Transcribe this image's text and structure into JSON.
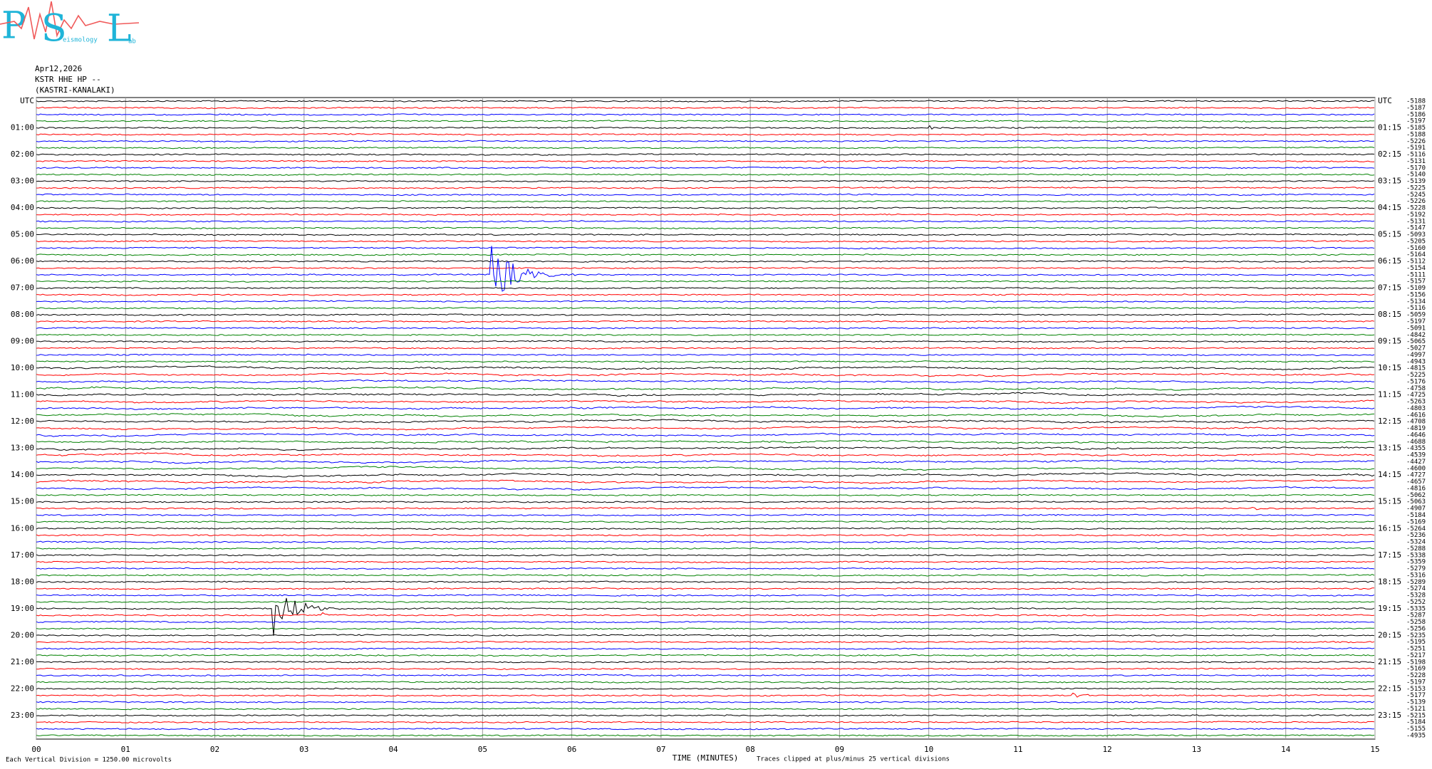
{
  "logo": {
    "letters": [
      "P",
      "S",
      "L"
    ],
    "small": [
      "eismology",
      "ab"
    ]
  },
  "header": {
    "date": "Apr12,2026",
    "station": "KSTR HHE HP --",
    "location": "(KASTRI-KANALAKI)"
  },
  "left_labels": [
    "UTC",
    "01:00",
    "02:00",
    "03:00",
    "04:00",
    "05:00",
    "06:00",
    "07:00",
    "08:00",
    "09:00",
    "10:00",
    "11:00",
    "12:00",
    "13:00",
    "14:00",
    "15:00",
    "16:00",
    "17:00",
    "18:00",
    "19:00",
    "20:00",
    "21:00",
    "22:00",
    "23:00"
  ],
  "right_labels": [
    "UTC",
    "01:15",
    "02:15",
    "03:15",
    "04:15",
    "05:15",
    "06:15",
    "07:15",
    "08:15",
    "09:15",
    "10:15",
    "11:15",
    "12:15",
    "13:15",
    "14:15",
    "15:15",
    "16:15",
    "17:15",
    "18:15",
    "19:15",
    "20:15",
    "21:15",
    "22:15",
    "23:15"
  ],
  "offsets": [
    -5188,
    -5187,
    -5186,
    -5197,
    -5185,
    -5188,
    -5226,
    -5191,
    -5116,
    -5131,
    -5170,
    -5140,
    -5139,
    -5225,
    -5245,
    -5226,
    -5228,
    -5192,
    -5131,
    -5147,
    -5093,
    -5205,
    -5160,
    -5164,
    -5112,
    -5154,
    -5111,
    -5157,
    -5109,
    -5156,
    -5134,
    -5116,
    -5059,
    -5197,
    -5091,
    -4842,
    -5065,
    -5027,
    -4997,
    -4943,
    -4815,
    -5225,
    -5176,
    -4758,
    -4725,
    -5263,
    -4803,
    -4616,
    -4708,
    -4819,
    -4646,
    -4688,
    -4355,
    -4539,
    -4427,
    -4600,
    -4727,
    -4657,
    -4816,
    -5062,
    -5063,
    -4907,
    -5184,
    -5169,
    -5264,
    -5236,
    -5324,
    -5288,
    -5338,
    -5359,
    -5279,
    -5316,
    -5289,
    -5274,
    -5328,
    -5252,
    -5335,
    -5287,
    -5258,
    -5256,
    -5235,
    -5195,
    -5251,
    -5217,
    -5198,
    -5169,
    -5228,
    -5197,
    -5153,
    -5177,
    -5139,
    -5121,
    -5215,
    -5184,
    -5155,
    -4935
  ],
  "x_ticks": [
    "00",
    "01",
    "02",
    "03",
    "04",
    "05",
    "06",
    "07",
    "08",
    "09",
    "10",
    "11",
    "12",
    "13",
    "14",
    "15"
  ],
  "footer": {
    "scale": "Each Vertical Division = 1250.00 microvolts",
    "x_label": "TIME (MINUTES)",
    "clip": "Traces clipped at plus/minus 25 vertical divisions"
  }
}
